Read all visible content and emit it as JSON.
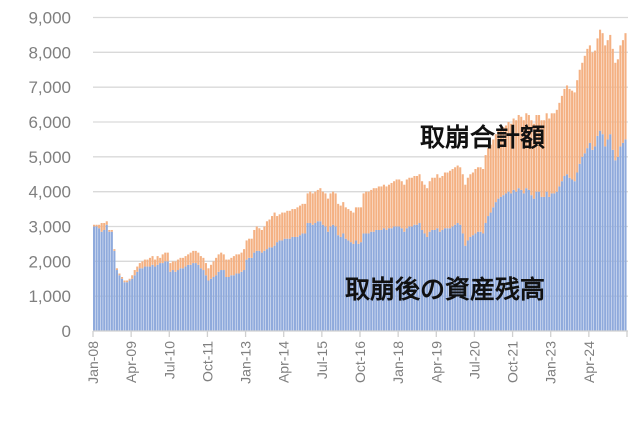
{
  "chart_data": {
    "type": "bar",
    "stacked": true,
    "title": "",
    "xlabel": "",
    "ylabel": "",
    "x_range": [
      "Jan-08",
      "Jun-25"
    ],
    "ylim": [
      0,
      9000
    ],
    "yticks": [
      "0",
      "1,000",
      "2,000",
      "3,000",
      "4,000",
      "5,000",
      "6,000",
      "7,000",
      "8,000",
      "9,000"
    ],
    "xticks": [
      "Jan-08",
      "Apr-09",
      "Jul-10",
      "Oct-11",
      "Jan-13",
      "Apr-14",
      "Jul-15",
      "Oct-16",
      "Jan-18",
      "Apr-19",
      "Jul-20",
      "Oct-21",
      "Jan-23",
      "Apr-24"
    ],
    "grid": true,
    "legend": "none",
    "annotations": [
      "取崩合計額",
      "取崩後の資産残高"
    ],
    "series": [
      {
        "name": "取崩後の資産残高",
        "color": "#8faadc",
        "values": [
          3000,
          3000,
          2950,
          2850,
          2900,
          3050,
          2850,
          2850,
          2300,
          1750,
          1600,
          1500,
          1400,
          1400,
          1450,
          1500,
          1600,
          1700,
          1800,
          1800,
          1850,
          1850,
          1850,
          1900,
          1850,
          1900,
          1950,
          1950,
          2000,
          2000,
          1700,
          1750,
          1700,
          1750,
          1800,
          1800,
          1850,
          1900,
          1900,
          1950,
          1950,
          1900,
          1800,
          1750,
          1600,
          1450,
          1500,
          1550,
          1600,
          1700,
          1750,
          1750,
          1550,
          1550,
          1600,
          1600,
          1650,
          1650,
          1700,
          1750,
          2050,
          2100,
          2100,
          2250,
          2300,
          2300,
          2250,
          2300,
          2350,
          2400,
          2400,
          2450,
          2550,
          2600,
          2600,
          2650,
          2650,
          2650,
          2700,
          2700,
          2700,
          2750,
          2800,
          2800,
          3100,
          3100,
          3050,
          3100,
          3150,
          3150,
          3050,
          3000,
          2850,
          3000,
          3050,
          3000,
          2750,
          2700,
          2800,
          2650,
          2600,
          2550,
          2500,
          2600,
          2500,
          2550,
          2800,
          2800,
          2800,
          2850,
          2850,
          2900,
          2900,
          2900,
          2950,
          2900,
          2950,
          2950,
          3000,
          3000,
          3000,
          2950,
          2850,
          2950,
          3000,
          3000,
          3050,
          3050,
          3100,
          2900,
          2800,
          2700,
          2850,
          2900,
          2900,
          2950,
          2850,
          2900,
          2950,
          2950,
          2950,
          3000,
          3050,
          3100,
          3050,
          2800,
          2450,
          2600,
          2700,
          2750,
          2800,
          2850,
          2850,
          2800,
          3100,
          3300,
          3400,
          3550,
          3700,
          3800,
          3850,
          3900,
          3950,
          4000,
          3950,
          4050,
          4000,
          4100,
          4050,
          3950,
          4100,
          4050,
          3900,
          3800,
          4000,
          4000,
          3850,
          3850,
          4000,
          3850,
          3950,
          3950,
          4000,
          4150,
          4300,
          4450,
          4500,
          4400,
          4350,
          4300,
          4550,
          4800,
          5000,
          5100,
          5250,
          5400,
          5200,
          5300,
          5600,
          5750,
          5650,
          5300,
          5500,
          5650,
          5200,
          4900,
          5000,
          5300,
          5400,
          5500
        ]
      },
      {
        "name": "取崩合計額",
        "color": "#f4b183",
        "values": [
          50,
          50,
          100,
          250,
          200,
          100,
          50,
          50,
          50,
          50,
          50,
          50,
          50,
          50,
          50,
          100,
          150,
          150,
          150,
          200,
          200,
          200,
          250,
          250,
          200,
          250,
          150,
          250,
          250,
          250,
          250,
          250,
          300,
          300,
          300,
          300,
          300,
          300,
          350,
          350,
          350,
          350,
          350,
          350,
          350,
          350,
          400,
          450,
          500,
          500,
          500,
          450,
          500,
          500,
          500,
          550,
          550,
          550,
          550,
          600,
          550,
          550,
          550,
          650,
          700,
          650,
          650,
          700,
          800,
          800,
          900,
          950,
          750,
          750,
          800,
          750,
          800,
          800,
          800,
          800,
          850,
          850,
          850,
          850,
          850,
          900,
          900,
          900,
          900,
          950,
          950,
          950,
          950,
          950,
          950,
          950,
          900,
          900,
          900,
          900,
          900,
          900,
          900,
          950,
          1050,
          1000,
          1150,
          1200,
          1200,
          1200,
          1250,
          1200,
          1250,
          1250,
          1250,
          1250,
          1250,
          1300,
          1300,
          1350,
          1350,
          1350,
          1350,
          1400,
          1400,
          1400,
          1400,
          1400,
          1400,
          1400,
          1400,
          1400,
          1450,
          1500,
          1500,
          1550,
          1550,
          1550,
          1600,
          1600,
          1650,
          1650,
          1650,
          1650,
          1650,
          1700,
          1750,
          1800,
          1800,
          1800,
          1850,
          1850,
          1850,
          1850,
          1950,
          1950,
          1950,
          1950,
          1950,
          1950,
          1950,
          1950,
          1950,
          2000,
          2000,
          2050,
          2050,
          2100,
          2100,
          2100,
          2150,
          2150,
          2150,
          2150,
          2200,
          2200,
          2200,
          2200,
          2250,
          2250,
          2300,
          2300,
          2350,
          2400,
          2450,
          2500,
          2550,
          2550,
          2550,
          2550,
          2650,
          2700,
          2700,
          2800,
          2850,
          2800,
          2800,
          2750,
          2800,
          2900,
          2900,
          2900,
          2850,
          2850,
          2900,
          2800,
          2800,
          2900,
          2950,
          3050
        ]
      }
    ]
  }
}
